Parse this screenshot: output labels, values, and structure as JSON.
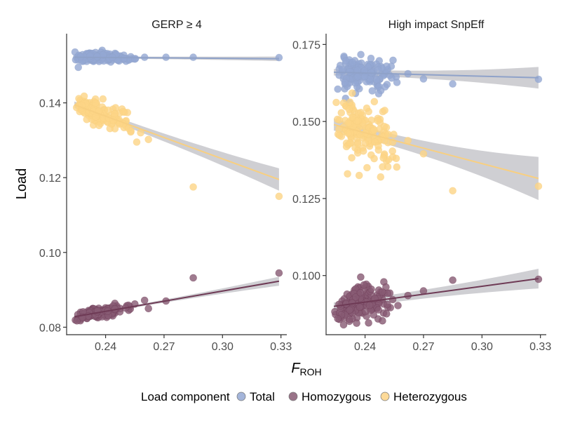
{
  "chart_data": {
    "type": "scatter",
    "xlabel_main": "F",
    "xlabel_sub": "ROH",
    "ylabel": "Load",
    "legend": {
      "title": "Load component",
      "position": "bottom",
      "entries": [
        {
          "name": "Total",
          "color": "#94a8d3"
        },
        {
          "name": "Homozygous",
          "color": "#875a73"
        },
        {
          "name": "Heterozygous",
          "color": "#fdd486"
        }
      ]
    },
    "colors": {
      "Total": {
        "point": "#94a8d3",
        "line": "#8fa2c9"
      },
      "Homozygous": {
        "point": "#875a73",
        "line": "#6e3a55"
      },
      "Heterozygous": {
        "point": "#fdd486",
        "line": "#f8cf80"
      },
      "ribbon": "#bdbdc2"
    },
    "panels": [
      {
        "title": "GERP ≥ 4",
        "xlim": [
          0.22,
          0.333
        ],
        "ylim": [
          0.078,
          0.1585
        ],
        "xticks": [
          0.24,
          0.27,
          0.3,
          0.33
        ],
        "xtick_labels": [
          "0.24",
          "0.27",
          "0.30",
          "0.33"
        ],
        "yticks": [
          0.08,
          0.1,
          0.12,
          0.14
        ],
        "ytick_labels": [
          "0.08",
          "0.10",
          "0.12",
          "0.14"
        ],
        "series": [
          {
            "name": "Total",
            "fit": {
              "x": [
                0.224,
                0.329
              ],
              "y": [
                0.1522,
                0.1518
              ],
              "se": [
                0.0003,
                0.0006
              ]
            },
            "cluster": {
              "n": 140,
              "seed": 11,
              "xmin": 0.224,
              "xmax": 0.258,
              "xmode": 0.236,
              "ysd": 0.0007
            },
            "outliers": [
              [
                0.226,
                0.1495
              ],
              [
                0.232,
                0.1525
              ],
              [
                0.255,
                0.1517
              ],
              [
                0.26,
                0.1522
              ],
              [
                0.271,
                0.1522
              ],
              [
                0.285,
                0.1522
              ],
              [
                0.329,
                0.1521
              ]
            ]
          },
          {
            "name": "Heterozygous",
            "fit": {
              "x": [
                0.224,
                0.329
              ],
              "y": [
                0.1395,
                0.1195
              ],
              "se": [
                0.0008,
                0.003
              ]
            },
            "cluster": {
              "n": 140,
              "seed": 23,
              "xmin": 0.224,
              "xmax": 0.255,
              "xmode": 0.236,
              "ysd": 0.0014
            },
            "outliers": [
              [
                0.229,
                0.1418
              ],
              [
                0.258,
                0.132
              ],
              [
                0.262,
                0.1302
              ],
              [
                0.256,
                0.1295
              ],
              [
                0.253,
                0.1325
              ],
              [
                0.285,
                0.1175
              ],
              [
                0.329,
                0.115
              ]
            ]
          },
          {
            "name": "Homozygous",
            "fit": {
              "x": [
                0.224,
                0.329
              ],
              "y": [
                0.0828,
                0.0923
              ],
              "se": [
                0.0003,
                0.0012
              ]
            },
            "cluster": {
              "n": 140,
              "seed": 37,
              "xmin": 0.224,
              "xmax": 0.255,
              "xmode": 0.236,
              "ysd": 0.0007
            },
            "outliers": [
              [
                0.255,
                0.0862
              ],
              [
                0.26,
                0.0872
              ],
              [
                0.262,
                0.085
              ],
              [
                0.271,
                0.087
              ],
              [
                0.285,
                0.0932
              ],
              [
                0.329,
                0.0945
              ]
            ]
          }
        ]
      },
      {
        "title": "High impact SnpEff",
        "xlim": [
          0.22,
          0.333
        ],
        "ylim": [
          0.0808,
          0.1785
        ],
        "xticks": [
          0.24,
          0.27,
          0.3,
          0.33
        ],
        "xtick_labels": [
          "0.24",
          "0.27",
          "0.30",
          "0.33"
        ],
        "yticks": [
          0.1,
          0.125,
          0.15,
          0.175
        ],
        "ytick_labels": [
          "0.100",
          "0.125",
          "0.150",
          "0.175"
        ],
        "series": [
          {
            "name": "Total",
            "fit": {
              "x": [
                0.224,
                0.329
              ],
              "y": [
                0.166,
                0.1642
              ],
              "se": [
                0.001,
                0.0035
              ]
            },
            "cluster": {
              "n": 150,
              "seed": 41,
              "xmin": 0.224,
              "xmax": 0.258,
              "xmode": 0.237,
              "ysd": 0.0024
            },
            "outliers": [
              [
                0.226,
                0.1605
              ],
              [
                0.23,
                0.1575
              ],
              [
                0.232,
                0.156
              ],
              [
                0.247,
                0.159
              ],
              [
                0.262,
                0.1655
              ],
              [
                0.27,
                0.1638
              ],
              [
                0.285,
                0.1622
              ],
              [
                0.329,
                0.1637
              ]
            ]
          },
          {
            "name": "Heterozygous",
            "fit": {
              "x": [
                0.224,
                0.329
              ],
              "y": [
                0.149,
                0.1315
              ],
              "se": [
                0.0018,
                0.007
              ]
            },
            "cluster": {
              "n": 150,
              "seed": 53,
              "xmin": 0.224,
              "xmax": 0.258,
              "xmode": 0.237,
              "ysd": 0.0045
            },
            "outliers": [
              [
                0.229,
                0.156
              ],
              [
                0.231,
                0.133
              ],
              [
                0.237,
                0.1325
              ],
              [
                0.241,
                0.135
              ],
              [
                0.248,
                0.132
              ],
              [
                0.256,
                0.138
              ],
              [
                0.262,
                0.1438
              ],
              [
                0.27,
                0.1395
              ],
              [
                0.285,
                0.1275
              ],
              [
                0.329,
                0.129
              ]
            ]
          },
          {
            "name": "Homozygous",
            "fit": {
              "x": [
                0.224,
                0.329
              ],
              "y": [
                0.09,
                0.099
              ],
              "se": [
                0.0012,
                0.0032
              ]
            },
            "cluster": {
              "n": 150,
              "seed": 67,
              "xmin": 0.224,
              "xmax": 0.258,
              "xmode": 0.237,
              "ysd": 0.0028
            },
            "outliers": [
              [
                0.226,
                0.086
              ],
              [
                0.229,
                0.084
              ],
              [
                0.262,
                0.0935
              ],
              [
                0.27,
                0.095
              ],
              [
                0.285,
                0.0985
              ],
              [
                0.329,
                0.0988
              ]
            ]
          }
        ]
      }
    ]
  }
}
